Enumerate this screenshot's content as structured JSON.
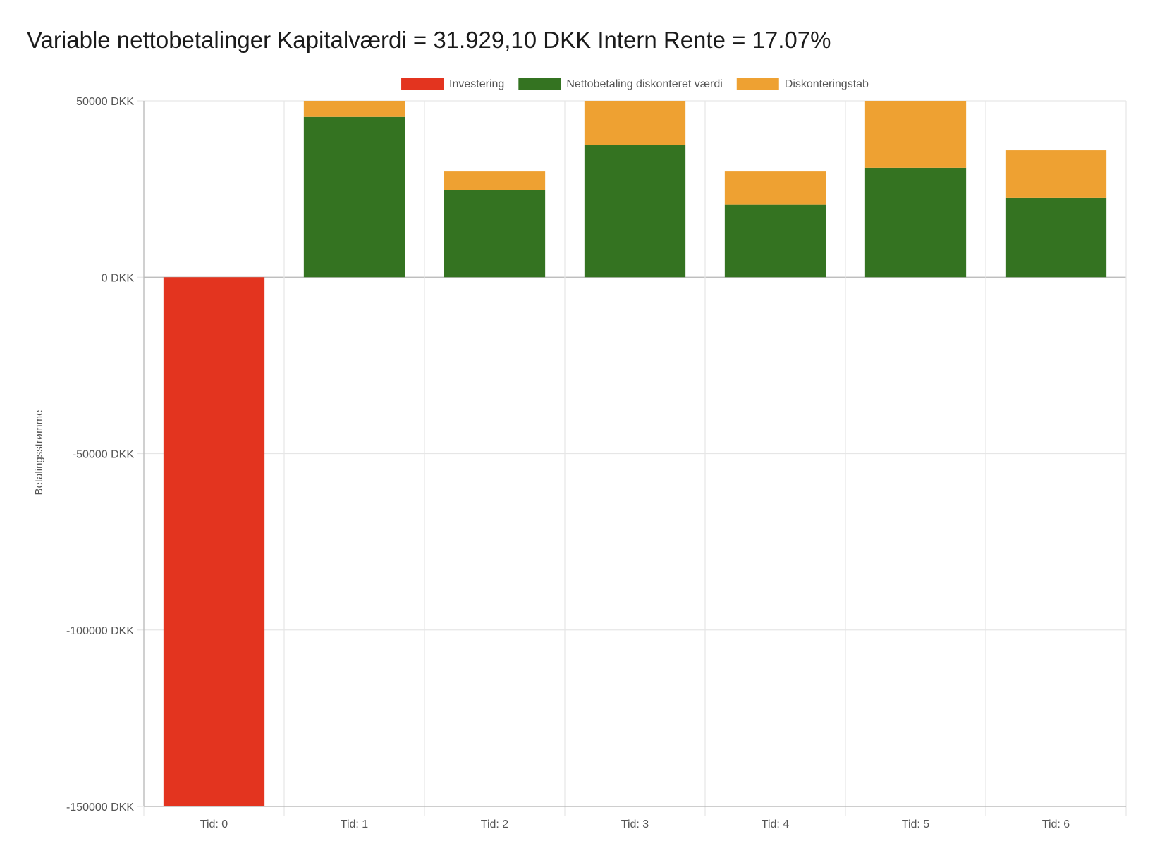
{
  "colors": {
    "investering": "#e3341f",
    "nettobetaling": "#347321",
    "diskonteringstab": "#eea132",
    "grid": "#e6e6e6",
    "axis": "#b4b4b4",
    "text": "#555555"
  },
  "chart_data": {
    "type": "bar",
    "stacked": true,
    "title": "Variable nettobetalinger Kapitalværdi = 31.929,10 DKK Intern Rente = 17.07%",
    "xlabel": "",
    "ylabel": "Betalingsstrømme",
    "ylim": [
      -150000,
      50000
    ],
    "grid": true,
    "legend_position": "top-center",
    "y_ticks": [
      {
        "value": 50000,
        "label": "50000 DKK"
      },
      {
        "value": 0,
        "label": "0 DKK"
      },
      {
        "value": -50000,
        "label": "-50000 DKK"
      },
      {
        "value": -100000,
        "label": "-100000 DKK"
      },
      {
        "value": -150000,
        "label": "-150000 DKK"
      }
    ],
    "categories": [
      "Tid: 0",
      "Tid: 1",
      "Tid: 2",
      "Tid: 3",
      "Tid: 4",
      "Tid: 5",
      "Tid: 6"
    ],
    "series": [
      {
        "name": "Investering",
        "color_key": "investering",
        "values": [
          -150000,
          0,
          0,
          0,
          0,
          0,
          0
        ]
      },
      {
        "name": "Nettobetaling diskonteret værdi",
        "color_key": "nettobetaling",
        "values": [
          0,
          45450,
          24800,
          37550,
          20500,
          31050,
          22450
        ]
      },
      {
        "name": "Diskonteringstab",
        "color_key": "diskonteringstab",
        "values": [
          0,
          4550,
          5200,
          12450,
          9500,
          18950,
          13550
        ]
      }
    ]
  }
}
